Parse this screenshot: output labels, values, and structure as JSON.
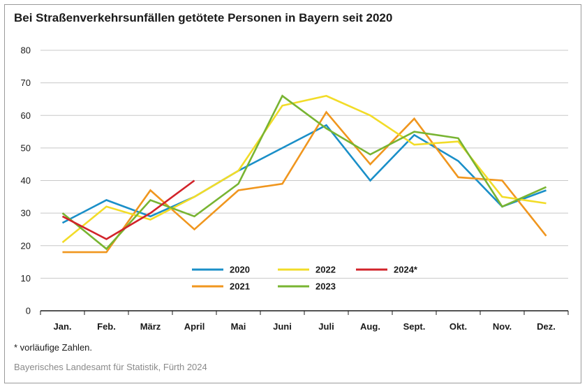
{
  "chart_data": {
    "type": "line",
    "title": "Bei Straßenverkehrsunfällen getötete Personen in Bayern seit 2020",
    "xlabel": "",
    "ylabel": "",
    "categories": [
      "Jan.",
      "Feb.",
      "März",
      "April",
      "Mai",
      "Juni",
      "Juli",
      "Aug.",
      "Sept.",
      "Okt.",
      "Nov.",
      "Dez."
    ],
    "ylim": [
      0,
      80
    ],
    "yticks": [
      0,
      10,
      20,
      30,
      40,
      50,
      60,
      70,
      80
    ],
    "grid": true,
    "legend_position": "center",
    "series": [
      {
        "name": "2020",
        "color": "#1a8fc8",
        "values": [
          27,
          34,
          29,
          35,
          43,
          50,
          57,
          40,
          54,
          46,
          32,
          37
        ]
      },
      {
        "name": "2021",
        "color": "#f0961e",
        "values": [
          18,
          18,
          37,
          25,
          37,
          39,
          61,
          45,
          59,
          41,
          40,
          23
        ]
      },
      {
        "name": "2022",
        "color": "#f2dc28",
        "values": [
          21,
          32,
          28,
          35,
          43,
          63,
          66,
          60,
          51,
          52,
          35,
          33
        ]
      },
      {
        "name": "2023",
        "color": "#78b432",
        "values": [
          30,
          19,
          34,
          29,
          39,
          66,
          56,
          48,
          55,
          53,
          32,
          38
        ]
      },
      {
        "name": "2024*",
        "color": "#d2232a",
        "values": [
          29,
          22,
          30,
          40,
          null,
          null,
          null,
          null,
          null,
          null,
          null,
          null
        ]
      }
    ]
  },
  "footnote": "* vorläufige Zahlen.",
  "source": "Bayerisches Landesamt für Statistik, Fürth 2024"
}
